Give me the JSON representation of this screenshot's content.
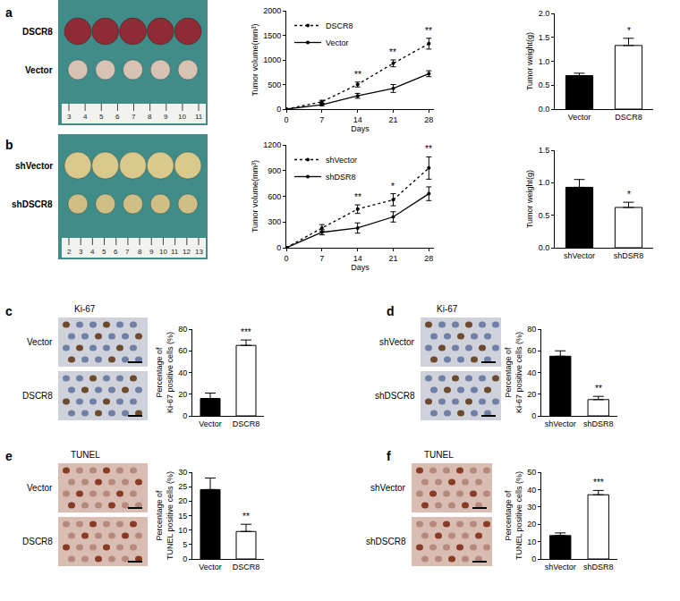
{
  "panel_labels": [
    "a",
    "b",
    "c",
    "d",
    "e",
    "f"
  ],
  "images": [
    {
      "type": "photo",
      "rows": [
        "DSCR8",
        "Vector"
      ],
      "ruler": [
        3,
        4,
        5,
        6,
        7,
        8,
        9,
        10,
        11
      ]
    },
    {
      "type": "photo",
      "rows": [
        "shVector",
        "shDSCR8"
      ],
      "ruler": [
        2,
        3,
        4,
        5,
        6,
        7,
        8,
        9,
        10,
        11,
        12,
        13
      ]
    },
    {
      "type": "micrograph",
      "title": "Ki-67",
      "rows": [
        "Vector",
        "DSCR8"
      ]
    },
    {
      "type": "micrograph",
      "title": "Ki-67",
      "rows": [
        "shVector",
        "shDSCR8"
      ]
    },
    {
      "type": "micrograph",
      "title": "TUNEL",
      "rows": [
        "Vector",
        "DSCR8"
      ]
    },
    {
      "type": "micrograph",
      "title": "TUNEL",
      "rows": [
        "shVector",
        "shDSCR8"
      ]
    }
  ],
  "chart_data": [
    {
      "type": "line",
      "xlabel": "Days",
      "ylabel": "Tumor volume(mm³)",
      "x": [
        0,
        7,
        14,
        21,
        28
      ],
      "xlim": [
        0,
        29
      ],
      "xticks": [
        0,
        7,
        14,
        21,
        28
      ],
      "ylim": [
        0,
        2000
      ],
      "yticks": [
        0,
        500,
        1000,
        1500,
        2000
      ],
      "grid": false,
      "legend": "top left",
      "series": [
        {
          "name": "DSCR8",
          "color": "#000000",
          "line_style": "dot",
          "marker": "circle",
          "values": [
            0,
            150,
            500,
            930,
            1330
          ],
          "errors": [
            0,
            30,
            50,
            70,
            110
          ]
        },
        {
          "name": "Vector",
          "color": "#000000",
          "line_style": "solid",
          "marker": "circle",
          "values": [
            0,
            90,
            270,
            420,
            720
          ],
          "errors": [
            0,
            20,
            50,
            80,
            60
          ]
        }
      ],
      "significance": [
        {
          "x": 14,
          "text": "**"
        },
        {
          "x": 21,
          "text": "**"
        },
        {
          "x": 28,
          "text": "**"
        }
      ]
    },
    {
      "type": "bar",
      "ylabel": "Tumor weight(g)",
      "categories": [
        "Vector",
        "DSCR8"
      ],
      "values": [
        0.7,
        1.33
      ],
      "errors": [
        0.05,
        0.15
      ],
      "colors": [
        "#000000",
        "#ffffff"
      ],
      "ylim": [
        0,
        2
      ],
      "yticks": [
        {
          "value": 0,
          "label": "0.0"
        },
        {
          "value": 0.5,
          "label": "0.5"
        },
        {
          "value": 1,
          "label": "1.0"
        },
        {
          "value": 1.5,
          "label": "1.5"
        },
        {
          "value": 2,
          "label": "2.0"
        }
      ],
      "grid": false,
      "significance": [
        null,
        "*"
      ]
    },
    {
      "type": "line",
      "xlabel": "Days",
      "ylabel": "Tumor volume(mm³)",
      "x": [
        0,
        7,
        14,
        21,
        28
      ],
      "xlim": [
        0,
        29
      ],
      "xticks": [
        0,
        7,
        14,
        21,
        28
      ],
      "ylim": [
        0,
        1200
      ],
      "yticks": [
        0,
        300,
        600,
        900,
        1200
      ],
      "grid": false,
      "legend": "top left",
      "series": [
        {
          "name": "shVector",
          "color": "#000000",
          "line_style": "dot",
          "marker": "circle",
          "values": [
            0,
            230,
            450,
            560,
            930
          ],
          "errors": [
            0,
            40,
            50,
            70,
            130
          ]
        },
        {
          "name": "shDSR8",
          "color": "#000000",
          "line_style": "solid",
          "marker": "circle",
          "values": [
            0,
            180,
            230,
            360,
            630
          ],
          "errors": [
            0,
            30,
            60,
            60,
            80
          ]
        }
      ],
      "significance": [
        {
          "x": 14,
          "text": "**"
        },
        {
          "x": 21,
          "text": "*"
        },
        {
          "x": 28,
          "text": "**"
        }
      ]
    },
    {
      "type": "bar",
      "ylabel": "Tumor weight(g)",
      "categories": [
        "shVector",
        "shDSR8"
      ],
      "values": [
        0.93,
        0.62
      ],
      "errors": [
        0.12,
        0.08
      ],
      "colors": [
        "#000000",
        "#ffffff"
      ],
      "ylim": [
        0,
        1.5
      ],
      "yticks": [
        {
          "value": 0,
          "label": "0.0"
        },
        {
          "value": 0.5,
          "label": "0.5"
        },
        {
          "value": 1,
          "label": "1.0"
        },
        {
          "value": 1.5,
          "label": "1.5"
        }
      ],
      "grid": false,
      "significance": [
        null,
        "*"
      ]
    },
    {
      "type": "bar",
      "ylabel": "Percentage of\nKi-67 positive cells (%)",
      "categories": [
        "Vector",
        "DSCR8"
      ],
      "values": [
        16,
        65
      ],
      "errors": [
        5,
        5
      ],
      "colors": [
        "#000000",
        "#ffffff"
      ],
      "ylim": [
        0,
        80
      ],
      "yticks": [
        0,
        20,
        40,
        60,
        80
      ],
      "grid": false,
      "significance": [
        null,
        "***"
      ]
    },
    {
      "type": "bar",
      "ylabel": "Percentage of\nKi-67 positive cells (%)",
      "categories": [
        "shVector",
        "shDSR8"
      ],
      "values": [
        55,
        15
      ],
      "errors": [
        5,
        3
      ],
      "colors": [
        "#000000",
        "#ffffff"
      ],
      "ylim": [
        0,
        80
      ],
      "yticks": [
        0,
        20,
        40,
        60,
        80
      ],
      "grid": false,
      "significance": [
        null,
        "**"
      ]
    },
    {
      "type": "bar",
      "ylabel": "Percentage of\nTUNEL positive cells (%)",
      "categories": [
        "Vector",
        "DSCR8"
      ],
      "values": [
        24,
        9.5
      ],
      "errors": [
        4,
        2.5
      ],
      "colors": [
        "#000000",
        "#ffffff"
      ],
      "ylim": [
        0,
        30
      ],
      "yticks": [
        0,
        5,
        10,
        15,
        20,
        25,
        30
      ],
      "grid": false,
      "significance": [
        null,
        "**"
      ]
    },
    {
      "type": "bar",
      "ylabel": "Percentage of\nTUNEL positive cells (%)",
      "categories": [
        "shVector",
        "shDSR8"
      ],
      "values": [
        13.5,
        37
      ],
      "errors": [
        1.5,
        2.5
      ],
      "colors": [
        "#000000",
        "#ffffff"
      ],
      "ylim": [
        0,
        50
      ],
      "yticks": [
        0,
        10,
        20,
        30,
        40,
        50
      ],
      "grid": false,
      "significance": [
        null,
        "***"
      ]
    }
  ]
}
